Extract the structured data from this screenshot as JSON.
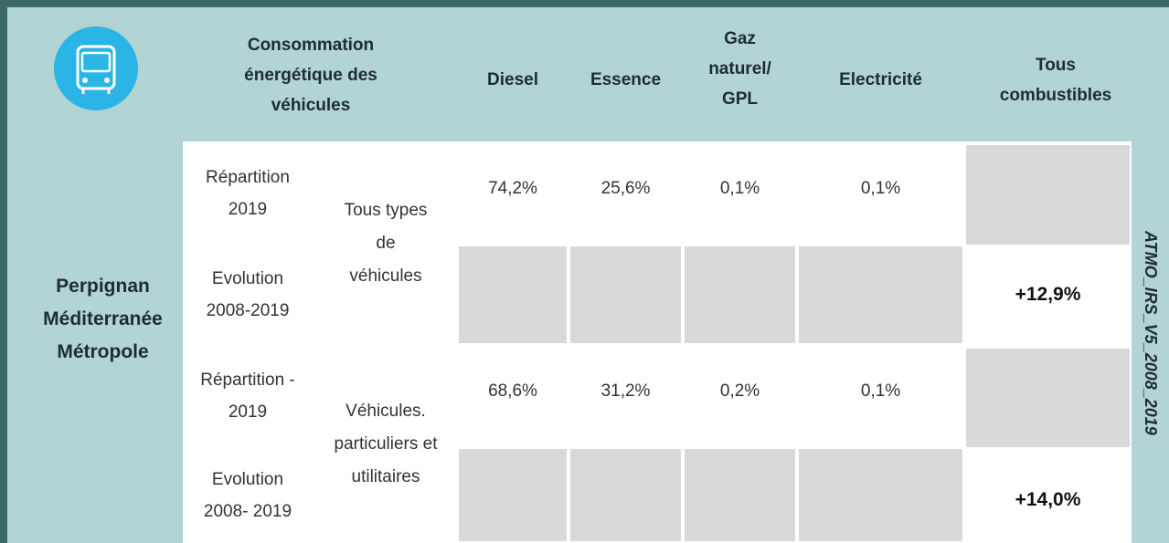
{
  "header": {
    "title": "Consommation énergétique des véhicules",
    "columns": [
      "Diesel",
      "Essence",
      "Gaz naturel/ GPL",
      "Electricité",
      "Tous combustibles"
    ]
  },
  "territory": "Perpignan Méditerranée Métropole",
  "groups": [
    {
      "vehicle_type": "Tous types de véhicules",
      "rows": [
        {
          "label": "Répartition 2019",
          "values": [
            "74,2%",
            "25,6%",
            "0,1%",
            "0,1%"
          ]
        },
        {
          "label": "Evolution 2008-2019",
          "total": "+12,9%"
        }
      ]
    },
    {
      "vehicle_type": "Véhicules. particuliers et utilitaires",
      "rows": [
        {
          "label": "Répartition - 2019",
          "values": [
            "68,6%",
            "31,2%",
            "0,2%",
            "0,1%"
          ]
        },
        {
          "label": "Evolution 2008- 2019",
          "total": "+14,0%"
        }
      ]
    }
  ],
  "source": "ATMO_IRS_V5_2008_2019"
}
